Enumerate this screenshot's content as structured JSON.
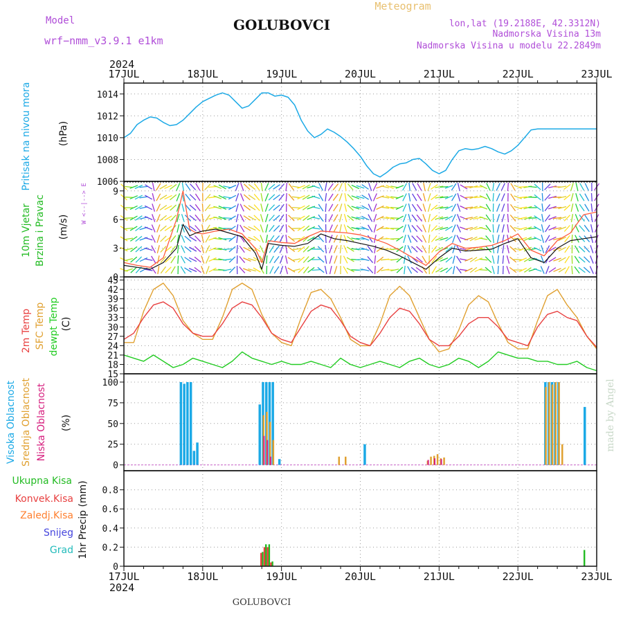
{
  "header": {
    "model_label": "Model",
    "model_name": "wrf−nmm_v3.9.1 e1km",
    "location": "GOLUBOVCI",
    "product": "Meteogram",
    "lonlat": "lon,lat (19.2188E, 42.3312N)",
    "elevation": "Nadmorska Visina 13m",
    "model_elevation": "Nadmorska Visina u modelu 22.2849m",
    "year": "2024",
    "footer_location": "GOLUBOVCI",
    "credit": "made by Angel"
  },
  "colors": {
    "pressure": "#1ba9e6",
    "wind_label": "#22bb22",
    "wind_speed": "#111111",
    "wind_gust": "#ff5a3c",
    "t2m": "#e84040",
    "tsfc": "#e0a030",
    "dewpt": "#22cc22",
    "high_cloud": "#1ba9e6",
    "mid_cloud": "#e0a030",
    "low_cloud": "#d61e7e",
    "rain_total": "#22bb22",
    "rain_conv": "#e84040",
    "rain_strat": "#ff8030",
    "snow": "#4444dd",
    "hail": "#22bbbb",
    "credit": "#c8d8c8"
  },
  "x_ticks": [
    "17JUL",
    "18JUL",
    "19JUL",
    "20JUL",
    "21JUL",
    "22JUL",
    "23JUL"
  ],
  "panels": {
    "pressure": {
      "label": "Pritisak na nivou mora",
      "unit": "(hPa)",
      "yticks": [
        "1014",
        "1012",
        "1010",
        "1008",
        "1006"
      ]
    },
    "wind": {
      "label1": "10m Vjetar",
      "label2": "Brzina i Pravac",
      "unit": "(m/s)",
      "yticks": [
        "9",
        "6",
        "3",
        "0"
      ],
      "compass": "W <--|--> E"
    },
    "temp": {
      "label_t2m": "2m Temp",
      "label_sfc": "SFC Temp",
      "label_dew": "dewpt Temp",
      "unit": "(C)",
      "yticks": [
        "45",
        "42",
        "39",
        "36",
        "33",
        "30",
        "27",
        "24",
        "21",
        "18",
        "15"
      ]
    },
    "cloud": {
      "label_high": "Visoka Oblacnost",
      "label_mid": "Srednja Oblacnost",
      "label_low": "Niska Oblacnost",
      "unit": "(%)",
      "yticks": [
        "100",
        "75",
        "50",
        "25",
        "0"
      ]
    },
    "precip": {
      "unit": "1hr Precip (mm)",
      "yticks": [
        "0.8",
        "0.6",
        "0.4",
        "0.2",
        "0"
      ],
      "legend": [
        "Ukupna Kisa",
        "Konvek.Kisa",
        "Zaledj.Kisa",
        "Snijeg",
        "Grad"
      ]
    }
  },
  "chart_data": [
    {
      "type": "line",
      "title": "Pritisak na nivou mora",
      "ylabel": "(hPa)",
      "ylim": [
        1006,
        1015
      ],
      "x_unit": "hours from 17JUL 00UTC",
      "x": [
        0,
        2,
        4,
        6,
        8,
        10,
        12,
        14,
        16,
        18,
        20,
        22,
        24,
        26,
        28,
        30,
        32,
        34,
        36,
        38,
        40,
        42,
        44,
        46,
        48,
        50,
        52,
        54,
        56,
        58,
        60,
        62,
        64,
        66,
        68,
        70,
        72,
        74,
        76,
        78,
        80,
        82,
        84,
        86,
        88,
        90,
        92,
        94,
        96,
        98,
        100,
        102,
        104,
        106,
        108,
        110,
        112,
        114,
        116,
        118,
        120,
        122,
        124,
        126,
        128,
        130,
        132,
        134,
        136,
        138,
        140,
        142,
        144
      ],
      "values": [
        1010.0,
        1010.4,
        1011.2,
        1011.6,
        1011.9,
        1011.8,
        1011.4,
        1011.1,
        1011.2,
        1011.6,
        1012.2,
        1012.8,
        1013.3,
        1013.6,
        1013.9,
        1014.1,
        1013.9,
        1013.3,
        1012.7,
        1012.9,
        1013.5,
        1014.1,
        1014.1,
        1013.8,
        1013.9,
        1013.7,
        1013.0,
        1011.6,
        1010.6,
        1010.0,
        1010.3,
        1010.8,
        1010.5,
        1010.1,
        1009.6,
        1009.0,
        1008.3,
        1007.4,
        1006.7,
        1006.4,
        1006.8,
        1007.3,
        1007.6,
        1007.7,
        1008.0,
        1008.1,
        1007.6,
        1007.0,
        1006.7,
        1007.0,
        1008.0,
        1008.8,
        1009.0,
        1008.9,
        1009.0,
        1009.2,
        1009.0,
        1008.7,
        1008.5,
        1008.8,
        1009.3,
        1010.0,
        1010.7,
        1010.8,
        1010.8,
        1010.8,
        1010.8,
        1010.8,
        1010.8,
        1010.8,
        1010.8,
        1010.8,
        1010.8
      ]
    },
    {
      "type": "line",
      "title": "10m Vjetar Brzina i Pravac",
      "ylabel": "(m/s)",
      "ylim": [
        0,
        10
      ],
      "x_unit": "hours from 17JUL 00UTC",
      "series": [
        {
          "name": "wind_speed",
          "x": [
            0,
            4,
            8,
            12,
            16,
            18,
            20,
            22,
            24,
            28,
            32,
            36,
            40,
            42,
            44,
            48,
            52,
            56,
            60,
            64,
            68,
            72,
            76,
            80,
            84,
            88,
            92,
            96,
            100,
            104,
            108,
            112,
            116,
            120,
            124,
            128,
            132,
            136,
            140,
            144
          ],
          "values": [
            1.2,
            1.0,
            0.8,
            1.5,
            3.0,
            5.5,
            4.3,
            4.6,
            4.8,
            5.0,
            4.6,
            4.2,
            2.5,
            0.8,
            3.5,
            3.3,
            3.2,
            3.5,
            4.5,
            4.0,
            3.8,
            3.5,
            3.2,
            2.8,
            2.2,
            1.5,
            0.8,
            2.0,
            3.0,
            2.7,
            2.8,
            2.9,
            3.5,
            4.0,
            2.0,
            1.5,
            3.0,
            3.8,
            4.0,
            4.2
          ]
        },
        {
          "name": "wind_gust",
          "x": [
            0,
            4,
            8,
            12,
            16,
            18,
            20,
            22,
            24,
            28,
            32,
            36,
            40,
            42,
            44,
            48,
            52,
            56,
            60,
            64,
            68,
            72,
            76,
            80,
            84,
            88,
            92,
            96,
            100,
            104,
            108,
            112,
            116,
            120,
            124,
            128,
            132,
            136,
            140,
            144
          ],
          "values": [
            1.5,
            1.2,
            1.0,
            2.0,
            6.0,
            9.0,
            5.0,
            4.6,
            4.5,
            4.8,
            5.0,
            4.5,
            3.0,
            1.5,
            3.8,
            3.6,
            3.5,
            4.2,
            4.8,
            4.7,
            4.6,
            4.4,
            4.0,
            3.5,
            2.8,
            2.0,
            1.2,
            2.6,
            3.5,
            3.0,
            3.1,
            3.3,
            3.8,
            4.5,
            2.8,
            2.2,
            3.8,
            4.6,
            6.5,
            6.8
          ]
        }
      ]
    },
    {
      "type": "line",
      "title": "2m Temp / SFC Temp / dewpt Temp",
      "ylabel": "(C)",
      "ylim": [
        15,
        46
      ],
      "x_unit": "hours from 17JUL 00UTC",
      "series": [
        {
          "name": "2m Temp",
          "x": [
            0,
            3,
            6,
            9,
            12,
            15,
            18,
            21,
            24,
            27,
            30,
            33,
            36,
            39,
            42,
            45,
            48,
            51,
            54,
            57,
            60,
            63,
            66,
            69,
            72,
            75,
            78,
            81,
            84,
            87,
            90,
            93,
            96,
            99,
            102,
            105,
            108,
            111,
            114,
            117,
            120,
            123,
            126,
            129,
            132,
            135,
            138,
            141,
            144
          ],
          "values": [
            26,
            28,
            33,
            37,
            38,
            36,
            31,
            28,
            27,
            27,
            31,
            36,
            38,
            37,
            33,
            28,
            26,
            25,
            30,
            35,
            37,
            36,
            32,
            27,
            25,
            24,
            28,
            33,
            36,
            35,
            31,
            26,
            24,
            24,
            27,
            31,
            33,
            33,
            30,
            26,
            25,
            24,
            30,
            34,
            35,
            33,
            32,
            27,
            23.5
          ]
        },
        {
          "name": "SFC Temp",
          "x": [
            0,
            3,
            6,
            9,
            12,
            15,
            18,
            21,
            24,
            27,
            30,
            33,
            36,
            39,
            42,
            45,
            48,
            51,
            54,
            57,
            60,
            63,
            66,
            69,
            72,
            75,
            78,
            81,
            84,
            87,
            90,
            93,
            96,
            99,
            102,
            105,
            108,
            111,
            114,
            117,
            120,
            123,
            126,
            129,
            132,
            135,
            138,
            141,
            144
          ],
          "values": [
            25,
            25,
            35,
            42,
            44,
            40,
            32,
            28,
            26,
            26,
            33,
            42,
            44,
            42,
            34,
            28,
            25,
            24,
            33,
            41,
            42,
            39,
            33,
            26,
            24,
            24,
            31,
            40,
            43,
            40,
            33,
            26,
            22,
            23,
            29,
            37,
            40,
            38,
            31,
            25,
            23,
            23,
            32,
            40,
            42,
            37,
            33,
            27,
            23
          ]
        },
        {
          "name": "dewpt Temp",
          "x": [
            0,
            3,
            6,
            9,
            12,
            15,
            18,
            21,
            24,
            27,
            30,
            33,
            36,
            39,
            42,
            45,
            48,
            51,
            54,
            57,
            60,
            63,
            66,
            69,
            72,
            75,
            78,
            81,
            84,
            87,
            90,
            93,
            96,
            99,
            102,
            105,
            108,
            111,
            114,
            117,
            120,
            123,
            126,
            129,
            132,
            135,
            138,
            141,
            144
          ],
          "values": [
            21,
            20,
            19,
            21,
            19,
            17,
            18,
            20,
            19,
            18,
            17,
            19,
            22,
            20,
            19,
            18,
            19,
            18,
            18,
            19,
            18,
            17,
            20,
            18,
            17,
            18,
            19,
            18,
            17,
            19,
            20,
            18,
            17,
            18,
            20,
            19,
            17,
            19,
            22,
            21,
            20,
            20,
            19,
            19,
            18,
            18,
            19,
            17,
            16
          ]
        }
      ]
    },
    {
      "type": "bar",
      "title": "Oblacnost",
      "ylabel": "(%)",
      "ylim": [
        0,
        100
      ],
      "x_unit": "hours from 17JUL 00UTC",
      "series": [
        {
          "name": "Visoka Oblacnost",
          "x": [
            17,
            18,
            19,
            20,
            21,
            22,
            41,
            42,
            43,
            44,
            45,
            47,
            73,
            128,
            129,
            130,
            131,
            132,
            140
          ],
          "values": [
            100,
            98,
            100,
            100,
            17,
            27,
            73,
            100,
            100,
            100,
            100,
            7,
            25,
            100,
            100,
            100,
            100,
            100,
            70
          ]
        },
        {
          "name": "Srednja Oblacnost",
          "x": [
            42,
            43,
            44,
            45,
            65,
            67,
            92,
            93,
            94,
            95,
            96,
            97,
            128,
            129,
            130,
            131,
            132,
            133
          ],
          "values": [
            60,
            64,
            52,
            30,
            10,
            10,
            5,
            10,
            11,
            13,
            8,
            9,
            94,
            100,
            97,
            100,
            100,
            25
          ]
        },
        {
          "name": "Niska Oblacnost",
          "x": [
            42,
            43,
            44,
            92,
            94,
            96
          ],
          "values": [
            35,
            30,
            10,
            6,
            8,
            7
          ]
        }
      ]
    },
    {
      "type": "bar",
      "title": "1hr Precip",
      "ylabel": "1hr Precip (mm)",
      "ylim": [
        0,
        1
      ],
      "x_unit": "hours from 17JUL 00UTC",
      "series": [
        {
          "name": "Ukupna Kisa",
          "x": [
            42,
            43,
            44,
            45,
            140
          ],
          "values": [
            0.15,
            0.23,
            0.23,
            0.05,
            0.17
          ]
        },
        {
          "name": "Konvek.Kisa",
          "x": [
            42,
            43,
            44,
            45
          ],
          "values": [
            0.14,
            0.2,
            0.2,
            0.04
          ]
        }
      ]
    }
  ]
}
